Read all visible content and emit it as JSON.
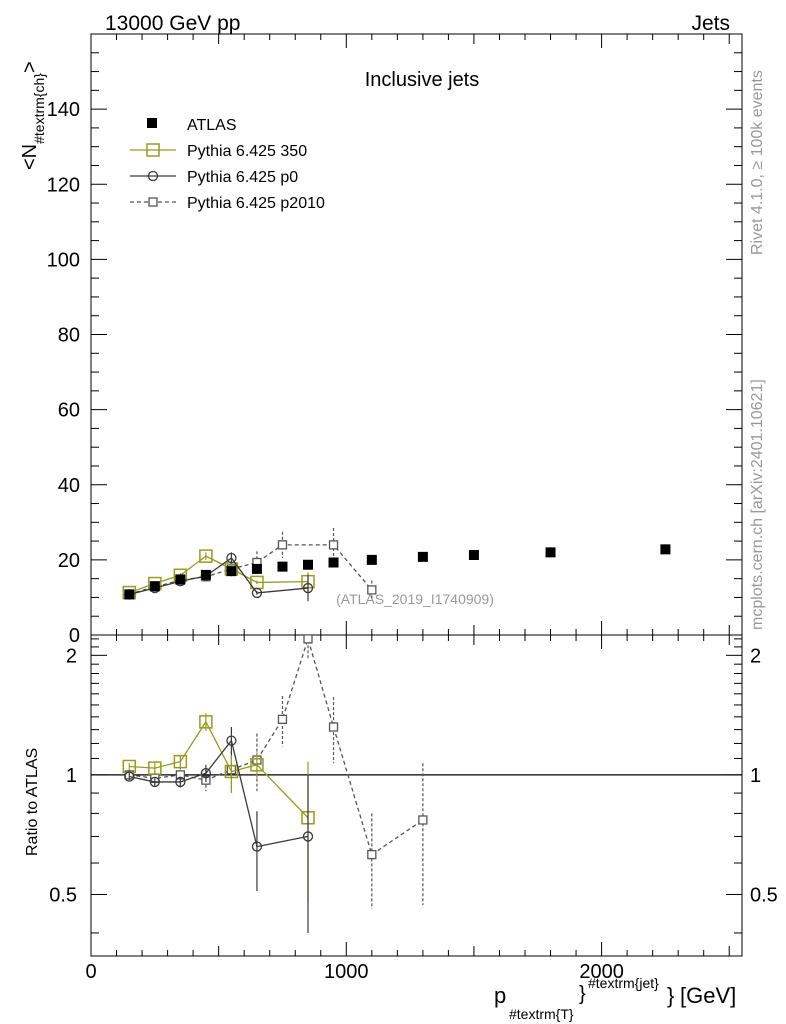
{
  "header": {
    "left": "13000 GeV pp",
    "right": "Jets"
  },
  "side_labels": {
    "rivet": "Rivet 4.1.0, ≥ 100k events",
    "mcplots": "mcplots.cern.ch [arXiv:2401.10621]"
  },
  "watermark": "(ATLAS_2019_I1740909)",
  "chart_data": {
    "type": "scatter",
    "title": "Inclusive jets",
    "xlabel_main": "p",
    "xlabel_sub": "#textrm{T}",
    "xlabel_sup": "#textrm{jet}",
    "xlabel_unit": "[GeV]",
    "ylabel_main": "<N",
    "ylabel_sub": "#textrm{ch}",
    "ylabel_end": ">",
    "ratio_ylabel": "Ratio to ATLAS",
    "xlim": [
      0,
      2550
    ],
    "ylim": [
      0,
      160
    ],
    "ratio_ylim": [
      0.35,
      2.25
    ],
    "x_ticks": [
      0,
      1000,
      2000
    ],
    "x_tick_labels": [
      "0",
      "1000",
      "2000"
    ],
    "y_ticks": [
      0,
      20,
      40,
      60,
      80,
      100,
      120,
      140
    ],
    "y_tick_labels": [
      "0",
      "20",
      "40",
      "60",
      "80",
      "100",
      "120",
      "140"
    ],
    "ratio_ticks": [
      0.5,
      1,
      2
    ],
    "ratio_tick_labels": [
      "0.5",
      "1",
      "2"
    ],
    "series": [
      {
        "name": "ATLAS",
        "style": "data",
        "color": "#000000",
        "x": [
          150,
          250,
          350,
          450,
          550,
          650,
          750,
          850,
          950,
          1100,
          1300,
          1500,
          1800,
          2250
        ],
        "y": [
          10.8,
          13.0,
          14.8,
          16.0,
          17.0,
          17.6,
          18.2,
          18.7,
          19.3,
          20.0,
          20.8,
          21.3,
          22.0,
          22.8
        ],
        "ratio": [
          1,
          1,
          1,
          1,
          1,
          1,
          1,
          1,
          1,
          1,
          1,
          1,
          1,
          1
        ]
      },
      {
        "name": "Pythia 6.425 350",
        "style": "line-open-square",
        "color": "#999b1c",
        "x": [
          150,
          250,
          350,
          450,
          550,
          650,
          850
        ],
        "y": [
          11.3,
          13.7,
          15.9,
          21.0,
          17.6,
          14.0,
          14.2
        ],
        "err": [
          0.4,
          0.5,
          0.6,
          1.0,
          2.0,
          0.5,
          2.5
        ],
        "ratio": [
          1.05,
          1.04,
          1.08,
          1.36,
          1.02,
          1.06,
          0.78
        ],
        "ratio_err": [
          0.02,
          0.03,
          0.04,
          0.07,
          0.12,
          0.08,
          0.3
        ]
      },
      {
        "name": "Pythia 6.425 p0",
        "style": "line-open-circle",
        "color": "#3a3a3a",
        "x": [
          150,
          250,
          350,
          450,
          550,
          650,
          850
        ],
        "y": [
          10.8,
          12.5,
          14.3,
          15.7,
          20.5,
          11.2,
          12.5
        ],
        "err": [
          0.3,
          0.4,
          0.5,
          0.6,
          1.5,
          0.5,
          3.5
        ],
        "ratio": [
          0.99,
          0.96,
          0.96,
          1.01,
          1.22,
          0.66,
          0.7
        ],
        "ratio_err": [
          0.02,
          0.02,
          0.03,
          0.05,
          0.1,
          0.15,
          0.3
        ]
      },
      {
        "name": "Pythia 6.425 p2010",
        "style": "dashed-open-square",
        "color": "#555555",
        "x": [
          150,
          250,
          350,
          450,
          550,
          650,
          750,
          950,
          1100
        ],
        "y": [
          10.9,
          12.8,
          14.6,
          15.5,
          17.6,
          19.3,
          24.0,
          24.0,
          12.0
        ],
        "err": [
          0.4,
          0.5,
          0.6,
          0.8,
          2.0,
          3.0,
          3.5,
          4.5,
          2.5
        ],
        "ratio": [
          1.0,
          0.98,
          1.0,
          0.97,
          1.03,
          1.09,
          1.38,
          2.2,
          1.32,
          0.63,
          0.77
        ],
        "ratio_x": [
          150,
          250,
          350,
          450,
          550,
          650,
          750,
          850,
          950,
          1100,
          1300
        ],
        "ratio_err": [
          0.03,
          0.04,
          0.05,
          0.06,
          0.12,
          0.18,
          0.2,
          0.25,
          0.25,
          0.17,
          0.3
        ]
      }
    ]
  }
}
